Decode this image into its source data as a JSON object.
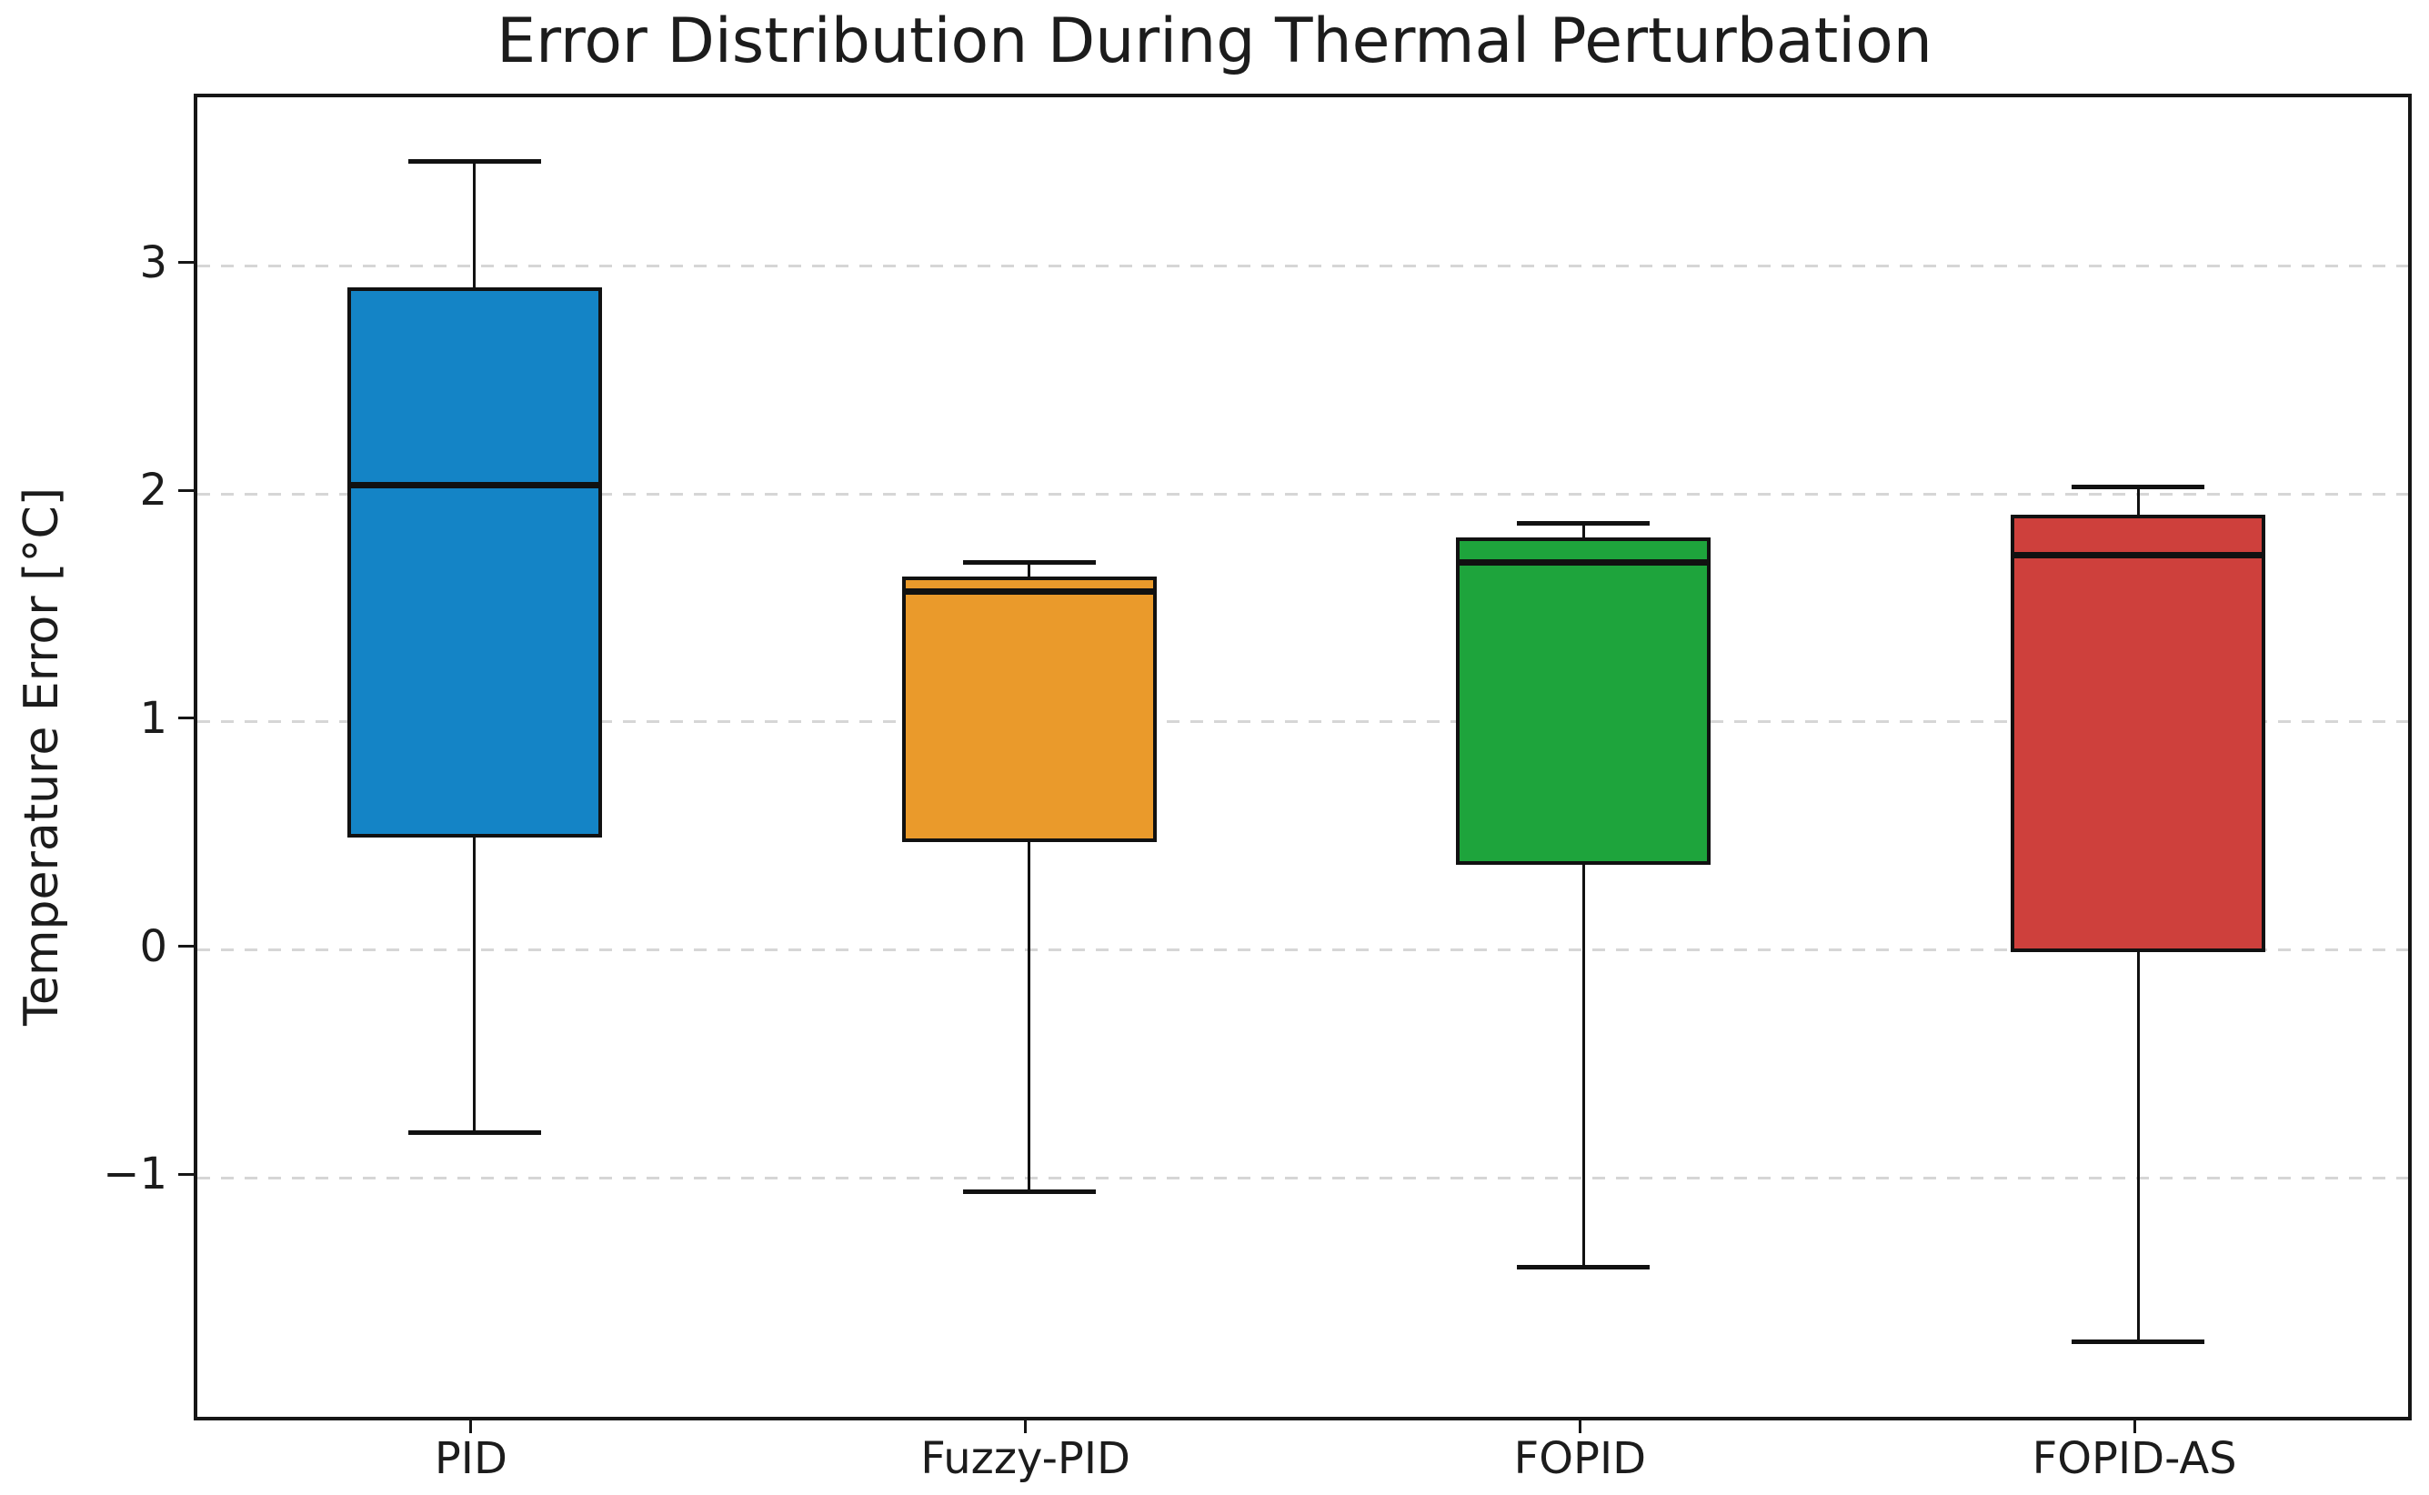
{
  "figure": {
    "title": "Error Distribution During Thermal Perturbation"
  },
  "chart_data": {
    "type": "box",
    "title": "Error Distribution During Thermal Perturbation",
    "xlabel": "",
    "ylabel": "Temperature Error [°C]",
    "categories": [
      "PID",
      "Fuzzy-PID",
      "FOPID",
      "FOPID-AS"
    ],
    "series": [
      {
        "name": "PID",
        "whisker_low": -0.8,
        "q1": 0.5,
        "median": 2.04,
        "q3": 2.9,
        "whisker_high": 3.46,
        "color": "#1484c6"
      },
      {
        "name": "Fuzzy-PID",
        "whisker_low": -1.06,
        "q1": 0.48,
        "median": 1.57,
        "q3": 1.63,
        "whisker_high": 1.7,
        "color": "#ea9a2b"
      },
      {
        "name": "FOPID",
        "whisker_low": -1.39,
        "q1": 0.38,
        "median": 1.7,
        "q3": 1.8,
        "whisker_high": 1.87,
        "color": "#1ea43c"
      },
      {
        "name": "FOPID-AS",
        "whisker_low": -1.72,
        "q1": 0.0,
        "median": 1.73,
        "q3": 1.9,
        "whisker_high": 2.03,
        "color": "#ce403c"
      }
    ],
    "ytick_labels": [
      "3",
      "2",
      "1",
      "0",
      "−1"
    ],
    "ytick_values": [
      3,
      2,
      1,
      0,
      -1
    ],
    "ylim": [
      -2.08,
      3.74
    ],
    "grid": "horizontal dashed",
    "legend_position": "none",
    "outliers": [],
    "colors": {
      "box_edge": "#111111",
      "median": "#111111",
      "whisker": "#111111",
      "grid": "#d6d6d6",
      "frame": "#161616",
      "text": "#1c1c1c",
      "background": "#ffffff"
    }
  }
}
